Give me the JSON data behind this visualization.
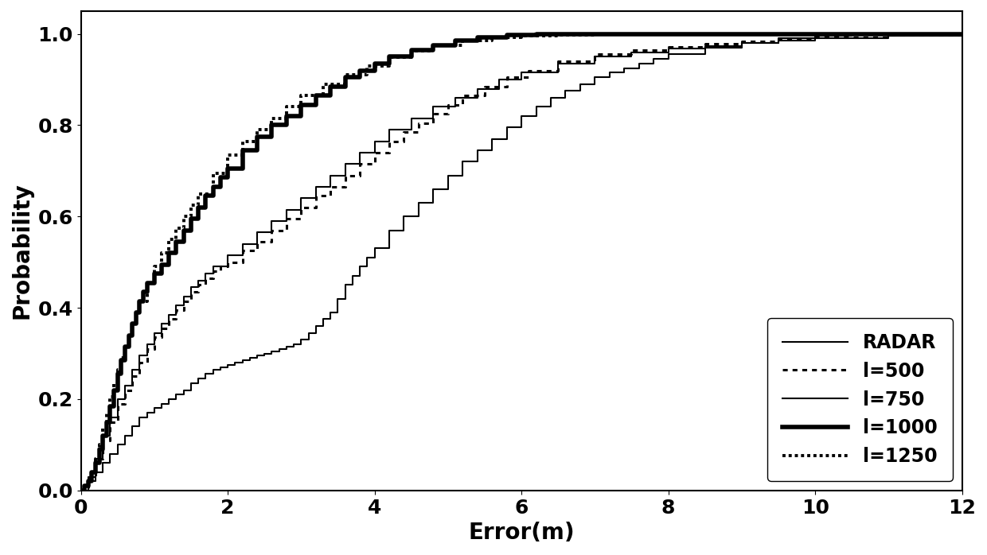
{
  "xlabel": "Error(m)",
  "ylabel": "Probability",
  "xlim": [
    0,
    12
  ],
  "ylim": [
    0,
    1.05
  ],
  "xticks": [
    0,
    2,
    4,
    6,
    8,
    10,
    12
  ],
  "yticks": [
    0,
    0.2,
    0.4,
    0.6,
    0.8,
    1
  ],
  "background_color": "#ffffff",
  "label_fontsize": 20,
  "tick_fontsize": 18,
  "legend_fontsize": 17,
  "radar_x": [
    0.0,
    0.1,
    0.2,
    0.3,
    0.4,
    0.5,
    0.6,
    0.7,
    0.8,
    0.9,
    1.0,
    1.1,
    1.2,
    1.3,
    1.4,
    1.5,
    1.6,
    1.7,
    1.8,
    1.9,
    2.0,
    2.1,
    2.2,
    2.3,
    2.4,
    2.5,
    2.6,
    2.7,
    2.8,
    2.9,
    3.0,
    3.1,
    3.2,
    3.3,
    3.4,
    3.5,
    3.6,
    3.7,
    3.8,
    3.9,
    4.0,
    4.2,
    4.4,
    4.6,
    4.8,
    5.0,
    5.2,
    5.4,
    5.6,
    5.8,
    6.0,
    6.2,
    6.4,
    6.6,
    6.8,
    7.0,
    7.2,
    7.4,
    7.6,
    7.8,
    8.0,
    8.5,
    9.0,
    9.5,
    10.0,
    10.5,
    11.0,
    11.5,
    12.0
  ],
  "radar_y": [
    0.0,
    0.02,
    0.04,
    0.06,
    0.08,
    0.1,
    0.12,
    0.14,
    0.16,
    0.17,
    0.18,
    0.19,
    0.2,
    0.21,
    0.22,
    0.235,
    0.245,
    0.255,
    0.265,
    0.27,
    0.275,
    0.28,
    0.285,
    0.29,
    0.295,
    0.3,
    0.305,
    0.31,
    0.315,
    0.32,
    0.33,
    0.345,
    0.36,
    0.375,
    0.39,
    0.42,
    0.45,
    0.47,
    0.49,
    0.51,
    0.53,
    0.57,
    0.6,
    0.63,
    0.66,
    0.69,
    0.72,
    0.745,
    0.77,
    0.795,
    0.82,
    0.84,
    0.86,
    0.875,
    0.89,
    0.905,
    0.915,
    0.925,
    0.935,
    0.945,
    0.955,
    0.97,
    0.98,
    0.99,
    0.995,
    0.997,
    0.998,
    0.999,
    1.0
  ],
  "l500_x": [
    0.0,
    0.1,
    0.2,
    0.3,
    0.4,
    0.5,
    0.6,
    0.7,
    0.8,
    0.9,
    1.0,
    1.1,
    1.2,
    1.3,
    1.4,
    1.5,
    1.6,
    1.7,
    1.8,
    1.9,
    2.0,
    2.2,
    2.4,
    2.6,
    2.8,
    3.0,
    3.2,
    3.4,
    3.6,
    3.8,
    4.0,
    4.2,
    4.4,
    4.6,
    4.8,
    5.0,
    5.2,
    5.5,
    5.8,
    6.1,
    6.5,
    7.0,
    7.5,
    8.0,
    8.5,
    9.0,
    9.5,
    10.0,
    11.0,
    12.0
  ],
  "l500_y": [
    0.0,
    0.03,
    0.07,
    0.11,
    0.15,
    0.19,
    0.22,
    0.25,
    0.28,
    0.31,
    0.335,
    0.355,
    0.375,
    0.395,
    0.415,
    0.435,
    0.45,
    0.465,
    0.48,
    0.49,
    0.5,
    0.525,
    0.545,
    0.57,
    0.595,
    0.62,
    0.645,
    0.665,
    0.69,
    0.715,
    0.74,
    0.765,
    0.785,
    0.805,
    0.825,
    0.845,
    0.865,
    0.885,
    0.905,
    0.92,
    0.94,
    0.955,
    0.965,
    0.972,
    0.978,
    0.983,
    0.988,
    0.992,
    0.997,
    1.0
  ],
  "l750_x": [
    0.0,
    0.1,
    0.2,
    0.3,
    0.4,
    0.5,
    0.6,
    0.7,
    0.8,
    0.9,
    1.0,
    1.1,
    1.2,
    1.3,
    1.4,
    1.5,
    1.6,
    1.7,
    1.8,
    2.0,
    2.2,
    2.4,
    2.6,
    2.8,
    3.0,
    3.2,
    3.4,
    3.6,
    3.8,
    4.0,
    4.2,
    4.5,
    4.8,
    5.1,
    5.4,
    5.7,
    6.0,
    6.5,
    7.0,
    7.5,
    8.0,
    8.5,
    9.0,
    9.5,
    10.0,
    11.0,
    12.0
  ],
  "l750_y": [
    0.0,
    0.03,
    0.07,
    0.12,
    0.16,
    0.2,
    0.23,
    0.265,
    0.295,
    0.32,
    0.345,
    0.365,
    0.385,
    0.405,
    0.425,
    0.445,
    0.46,
    0.475,
    0.49,
    0.515,
    0.54,
    0.565,
    0.59,
    0.615,
    0.64,
    0.665,
    0.69,
    0.715,
    0.74,
    0.765,
    0.79,
    0.815,
    0.84,
    0.86,
    0.88,
    0.9,
    0.915,
    0.935,
    0.95,
    0.96,
    0.968,
    0.974,
    0.98,
    0.985,
    0.99,
    0.996,
    1.0
  ],
  "l1000_x": [
    0.0,
    0.05,
    0.1,
    0.15,
    0.2,
    0.25,
    0.3,
    0.35,
    0.4,
    0.45,
    0.5,
    0.55,
    0.6,
    0.65,
    0.7,
    0.75,
    0.8,
    0.85,
    0.9,
    1.0,
    1.1,
    1.2,
    1.3,
    1.4,
    1.5,
    1.6,
    1.7,
    1.8,
    1.9,
    2.0,
    2.2,
    2.4,
    2.6,
    2.8,
    3.0,
    3.2,
    3.4,
    3.6,
    3.8,
    4.0,
    4.2,
    4.5,
    4.8,
    5.1,
    5.4,
    5.8,
    6.2,
    6.6,
    7.0,
    7.5,
    8.0,
    9.0,
    10.0,
    11.0,
    12.0
  ],
  "l1000_y": [
    0.0,
    0.01,
    0.02,
    0.04,
    0.06,
    0.09,
    0.12,
    0.15,
    0.185,
    0.22,
    0.255,
    0.285,
    0.315,
    0.34,
    0.365,
    0.39,
    0.415,
    0.435,
    0.455,
    0.475,
    0.495,
    0.52,
    0.545,
    0.57,
    0.595,
    0.62,
    0.645,
    0.665,
    0.685,
    0.705,
    0.745,
    0.775,
    0.8,
    0.82,
    0.845,
    0.865,
    0.885,
    0.905,
    0.92,
    0.935,
    0.95,
    0.965,
    0.975,
    0.985,
    0.992,
    0.997,
    1.0,
    1.0,
    1.0,
    1.0,
    1.0,
    1.0,
    1.0,
    1.0,
    1.0
  ],
  "l1250_x": [
    0.0,
    0.05,
    0.1,
    0.15,
    0.2,
    0.25,
    0.3,
    0.35,
    0.4,
    0.45,
    0.5,
    0.55,
    0.6,
    0.65,
    0.7,
    0.75,
    0.8,
    0.9,
    1.0,
    1.1,
    1.2,
    1.3,
    1.4,
    1.5,
    1.6,
    1.8,
    2.0,
    2.2,
    2.4,
    2.6,
    2.8,
    3.0,
    3.3,
    3.6,
    3.9,
    4.2,
    4.5,
    4.8,
    5.2,
    5.6,
    6.0,
    6.5,
    7.0,
    7.5,
    8.0,
    9.0,
    10.0,
    11.0,
    12.0
  ],
  "l1250_y": [
    0.0,
    0.01,
    0.02,
    0.04,
    0.07,
    0.1,
    0.135,
    0.17,
    0.205,
    0.235,
    0.265,
    0.29,
    0.315,
    0.34,
    0.365,
    0.39,
    0.415,
    0.455,
    0.49,
    0.52,
    0.55,
    0.575,
    0.6,
    0.625,
    0.65,
    0.695,
    0.735,
    0.765,
    0.79,
    0.815,
    0.84,
    0.865,
    0.89,
    0.91,
    0.93,
    0.948,
    0.963,
    0.975,
    0.985,
    0.992,
    0.996,
    0.998,
    0.999,
    1.0,
    1.0,
    1.0,
    1.0,
    1.0,
    1.0
  ]
}
